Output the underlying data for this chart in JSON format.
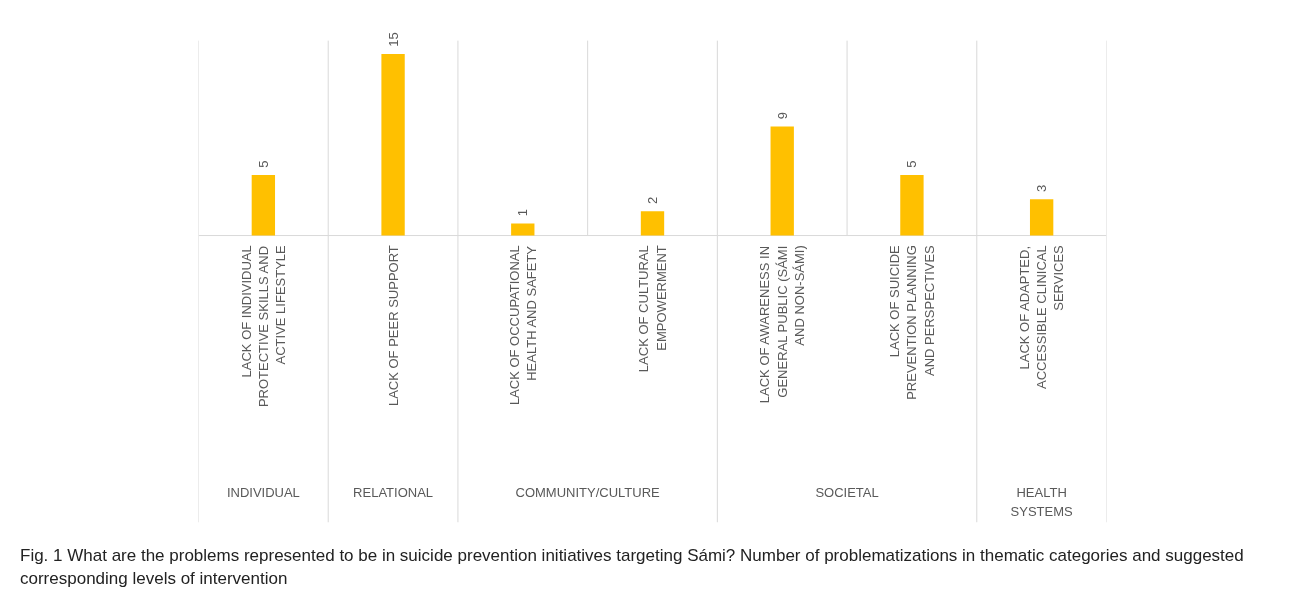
{
  "chart_data": {
    "type": "bar",
    "categories": [
      "LACK OF INDIVIDUAL\nPROTECTIVE SKILLS AND\nACTIVE LIFESTYLE",
      "LACK OF PEER SUPPORT",
      "LACK OF OCCUPATIONAL\nHEALTH AND SAFETY",
      "LACK OF CULTURAL\nEMPOWERMENT",
      "LACK OF AWARENESS IN\nGENERAL PUBLIC (SÁMI\nAND NON-SÁMI)",
      "LACK OF SUICIDE\nPREVENTION PLANNING\nAND PERSPECTIVES",
      "LACK OF ADAPTED,\nACCESSIBLE CLINICAL\nSERVICES"
    ],
    "values": [
      5,
      15,
      1,
      2,
      9,
      5,
      3
    ],
    "color": "#ffc000",
    "data_labels": true,
    "annotations": [
      "INDIVIDUAL",
      "RELATIONAL",
      "COMMUNITY/CULTURE",
      "SOCIETAL",
      "HEALTH\nSYSTEMS",
      "Fig. 1 What are the problems represented to be in suicide prevention initiatives targeting Sámi? Number of problematizations in thematic categories and suggested corresponding levels of intervention"
    ]
  }
}
